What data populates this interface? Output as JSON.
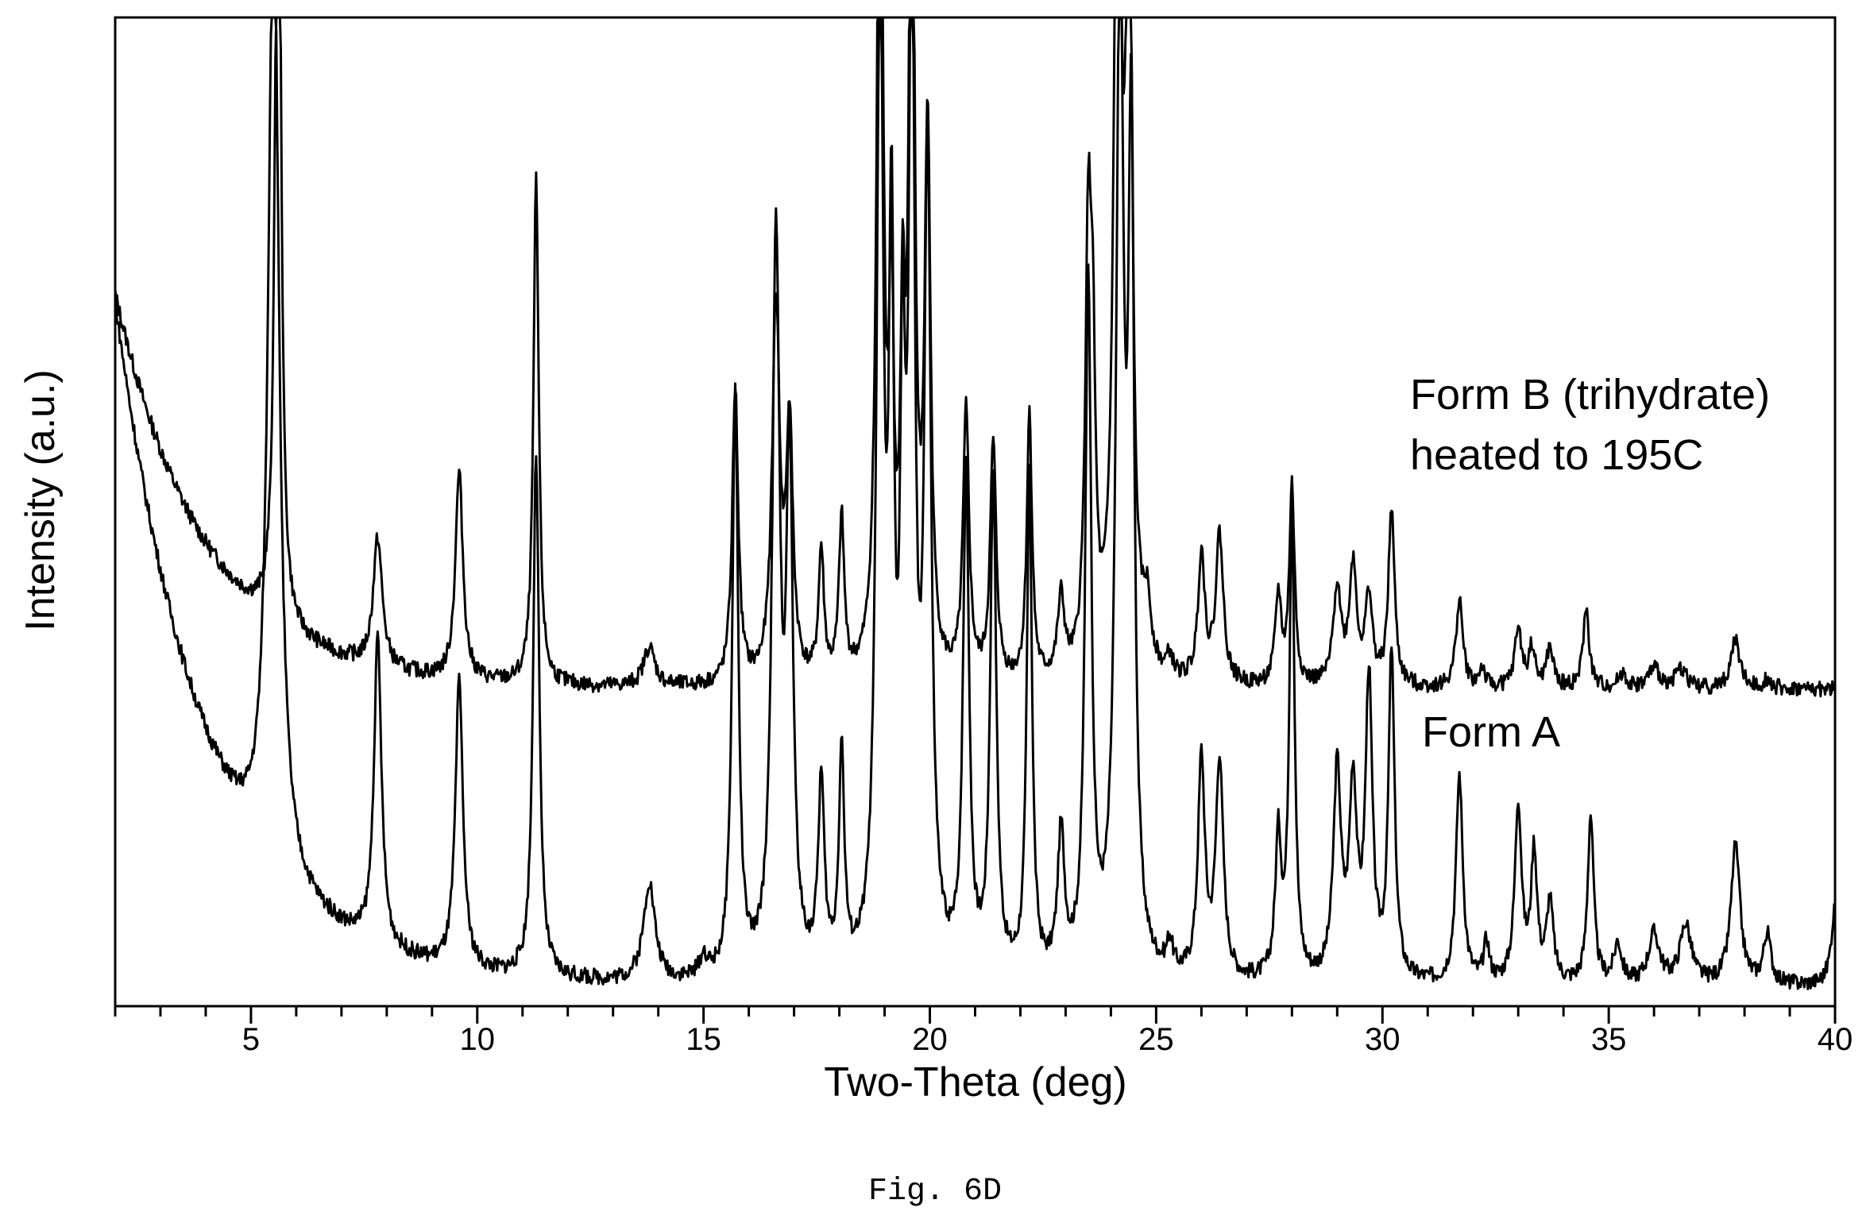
{
  "figure": {
    "caption": "Fig. 6D"
  },
  "chart_data": {
    "type": "line",
    "xlabel": "Two-Theta (deg)",
    "ylabel": "Intensity (a.u.)",
    "xlim": [
      2,
      40
    ],
    "ylim": [
      0,
      100
    ],
    "xticks": [
      5,
      10,
      15,
      20,
      25,
      30,
      35,
      40
    ],
    "grid": false,
    "legend": "none",
    "series": [
      {
        "name": "Form B (trihydrate) heated to 195C",
        "label_lines": [
          "Form B (trihydrate)",
          "heated to 195C"
        ],
        "color": "#000000",
        "baseline": 32,
        "decay_amp": 40,
        "decay_rate": 0.5,
        "peaks": [
          [
            5.6,
            100,
            0.07
          ],
          [
            7.8,
            13,
            0.12
          ],
          [
            9.6,
            21,
            0.1
          ],
          [
            11.3,
            51,
            0.07
          ],
          [
            13.8,
            4,
            0.15
          ],
          [
            15.7,
            30,
            0.08
          ],
          [
            16.6,
            38,
            0.1
          ],
          [
            16.9,
            25,
            0.09
          ],
          [
            17.6,
            13,
            0.07
          ],
          [
            18.05,
            16,
            0.07
          ],
          [
            18.9,
            100,
            0.08
          ],
          [
            19.15,
            35,
            0.06
          ],
          [
            19.4,
            30,
            0.06
          ],
          [
            19.6,
            100,
            0.07
          ],
          [
            19.95,
            55,
            0.08
          ],
          [
            20.8,
            27,
            0.08
          ],
          [
            21.4,
            24,
            0.08
          ],
          [
            22.2,
            27,
            0.07
          ],
          [
            22.9,
            8,
            0.09
          ],
          [
            23.5,
            42,
            0.08
          ],
          [
            23.6,
            25,
            0.07
          ],
          [
            24.15,
            100,
            0.09
          ],
          [
            24.4,
            85,
            0.08
          ],
          [
            24.8,
            6,
            0.1
          ],
          [
            25.3,
            2,
            0.08
          ],
          [
            26.0,
            13,
            0.09
          ],
          [
            26.4,
            15,
            0.1
          ],
          [
            27.7,
            9,
            0.08
          ],
          [
            28.0,
            20,
            0.07
          ],
          [
            29.0,
            10,
            0.1
          ],
          [
            29.35,
            12,
            0.1
          ],
          [
            29.7,
            9,
            0.09
          ],
          [
            30.2,
            18,
            0.08
          ],
          [
            31.7,
            9,
            0.09
          ],
          [
            32.2,
            2,
            0.07
          ],
          [
            33.0,
            6,
            0.09
          ],
          [
            33.3,
            4,
            0.08
          ],
          [
            33.7,
            4,
            0.09
          ],
          [
            34.5,
            8,
            0.08
          ],
          [
            35.3,
            1.5,
            0.1
          ],
          [
            36.0,
            2,
            0.15
          ],
          [
            36.6,
            2,
            0.15
          ],
          [
            37.8,
            5,
            0.12
          ],
          [
            38.5,
            1,
            0.1
          ]
        ]
      },
      {
        "name": "Form A",
        "label_lines": [
          "Form A"
        ],
        "color": "#000000",
        "baseline": 2,
        "decay_amp": 69,
        "decay_rate": 0.5,
        "peaks": [
          [
            5.5,
            100,
            0.14
          ],
          [
            7.8,
            31,
            0.1
          ],
          [
            9.6,
            29,
            0.1
          ],
          [
            11.3,
            53,
            0.08
          ],
          [
            13.8,
            10,
            0.15
          ],
          [
            15.0,
            2,
            0.1
          ],
          [
            15.7,
            59,
            0.08
          ],
          [
            16.6,
            73,
            0.1
          ],
          [
            16.9,
            50,
            0.09
          ],
          [
            17.6,
            19,
            0.08
          ],
          [
            18.05,
            22,
            0.07
          ],
          [
            18.9,
            100,
            0.09
          ],
          [
            19.15,
            66,
            0.07
          ],
          [
            19.4,
            50,
            0.07
          ],
          [
            19.6,
            100,
            0.08
          ],
          [
            19.95,
            80,
            0.09
          ],
          [
            20.8,
            50,
            0.08
          ],
          [
            21.4,
            50,
            0.08
          ],
          [
            22.2,
            50,
            0.07
          ],
          [
            22.9,
            14,
            0.09
          ],
          [
            23.5,
            70,
            0.08
          ],
          [
            24.2,
            100,
            0.1
          ],
          [
            24.45,
            80,
            0.08
          ],
          [
            25.3,
            3,
            0.08
          ],
          [
            26.0,
            22,
            0.09
          ],
          [
            26.4,
            22,
            0.1
          ],
          [
            27.7,
            14,
            0.08
          ],
          [
            28.0,
            47,
            0.07
          ],
          [
            29.0,
            21,
            0.1
          ],
          [
            29.35,
            19,
            0.1
          ],
          [
            29.7,
            30,
            0.09
          ],
          [
            30.2,
            33,
            0.08
          ],
          [
            31.7,
            21,
            0.09
          ],
          [
            32.3,
            4,
            0.07
          ],
          [
            33.0,
            18,
            0.09
          ],
          [
            33.35,
            13,
            0.08
          ],
          [
            33.7,
            8,
            0.09
          ],
          [
            34.6,
            17,
            0.08
          ],
          [
            35.2,
            4,
            0.1
          ],
          [
            36.0,
            5,
            0.15
          ],
          [
            36.7,
            6,
            0.15
          ],
          [
            37.8,
            14,
            0.12
          ],
          [
            38.5,
            5,
            0.1
          ],
          [
            40.0,
            8,
            0.1
          ]
        ]
      }
    ]
  }
}
